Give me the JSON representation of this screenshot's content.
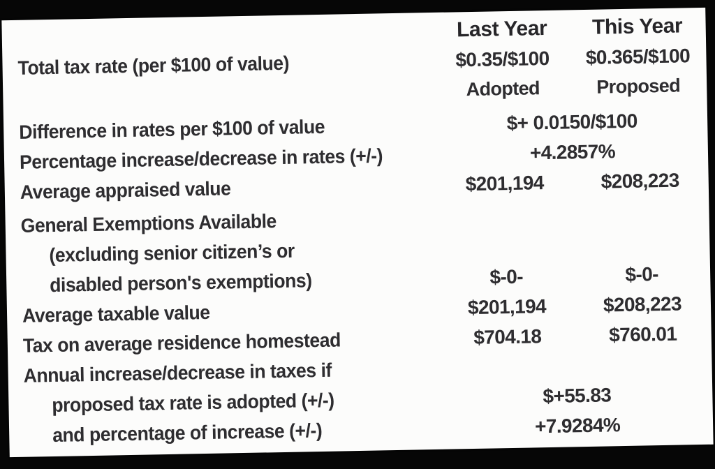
{
  "document": {
    "kind": "scanned tax rate comparison table",
    "paper_color": "#fcfcfb",
    "scan_border_color": "#060606",
    "text_color": "#2e2d30"
  },
  "table": {
    "columns": {
      "last_year": "Last Year",
      "this_year": "This Year"
    },
    "rows": [
      {
        "label": "Total tax rate (per $100 of value)",
        "col1": "$0.35/$100",
        "col2": "$0.365/$100"
      },
      {
        "label": "",
        "col1": "Adopted",
        "col2": "Proposed"
      },
      {
        "label": "Difference in rates per $100 of value",
        "span": "$+ 0.0150/$100"
      },
      {
        "label": "Percentage increase/decrease in rates (+/-)",
        "span": "+4.2857%"
      },
      {
        "label": "Average appraised value",
        "col1": "$201,194",
        "col2": "$208,223"
      },
      {
        "label": "General Exemptions Available"
      },
      {
        "label": "(excluding senior citizen’s or"
      },
      {
        "label": "disabled person's exemptions)",
        "col1": "$-0-",
        "col2": "$-0-"
      },
      {
        "label": "Average taxable value",
        "col1": "$201,194",
        "col2": "$208,223"
      },
      {
        "label": "Tax on average residence homestead",
        "col1": "$704.18",
        "col2": "$760.01"
      },
      {
        "label": "Annual increase/decrease in taxes if"
      },
      {
        "label": "proposed tax rate is adopted (+/-)",
        "span": "$+55.83"
      },
      {
        "label": "and percentage of increase (+/-)",
        "span": "+7.9284%"
      }
    ]
  },
  "chart_data": {
    "type": "table",
    "title": "Tax rate comparison",
    "columns": [
      "",
      "Last Year (Adopted)",
      "This Year (Proposed)"
    ],
    "rows": [
      [
        "Total tax rate (per $100 of value)",
        "$0.35/$100",
        "$0.365/$100"
      ],
      [
        "Difference in rates per $100 of value",
        "$+ 0.0150/$100",
        ""
      ],
      [
        "Percentage increase/decrease in rates (+/-)",
        "+4.2857%",
        ""
      ],
      [
        "Average appraised value",
        "$201,194",
        "$208,223"
      ],
      [
        "General Exemptions Available (excluding senior citizen's or disabled person's exemptions)",
        "$-0-",
        "$-0-"
      ],
      [
        "Average taxable value",
        "$201,194",
        "$208,223"
      ],
      [
        "Tax on average residence homestead",
        "$704.18",
        "$760.01"
      ],
      [
        "Annual increase/decrease in taxes if proposed tax rate is adopted (+/-)",
        "$+55.83",
        ""
      ],
      [
        "and percentage of increase (+/-)",
        "+7.9284%",
        ""
      ]
    ]
  }
}
